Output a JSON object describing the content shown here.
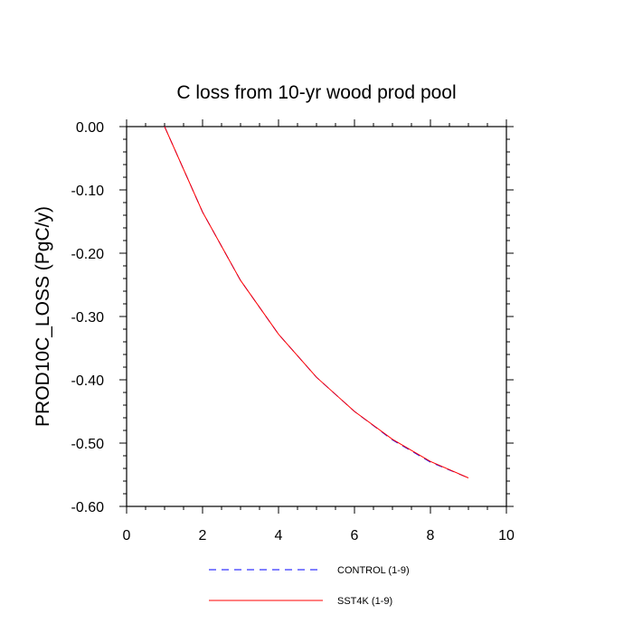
{
  "chart_data": {
    "type": "line",
    "title": "C loss from 10-yr wood prod pool",
    "xlabel": "",
    "ylabel": "PROD10C_LOSS  (PgC/y)",
    "xlim": [
      0,
      10
    ],
    "ylim": [
      -0.6,
      0.0
    ],
    "x_ticks": [
      "0",
      "2",
      "4",
      "6",
      "8",
      "10"
    ],
    "y_ticks": [
      "0.00",
      "-0.10",
      "-0.20",
      "-0.30",
      "-0.40",
      "-0.50",
      "-0.60"
    ],
    "grid": false,
    "legend_position": "bottom",
    "x": [
      1,
      2,
      3,
      4,
      5,
      6,
      7,
      8,
      9
    ],
    "series": [
      {
        "name": "CONTROL (1-9)",
        "color": "#0000ff",
        "dash": "dashed",
        "values": [
          0.0,
          -0.135,
          -0.243,
          -0.328,
          -0.396,
          -0.45,
          -0.495,
          -0.53,
          -0.555
        ]
      },
      {
        "name": "SST4K (1-9)",
        "color": "#ff0000",
        "dash": "solid",
        "values": [
          0.0,
          -0.135,
          -0.243,
          -0.328,
          -0.396,
          -0.45,
          -0.494,
          -0.529,
          -0.555
        ]
      }
    ]
  }
}
